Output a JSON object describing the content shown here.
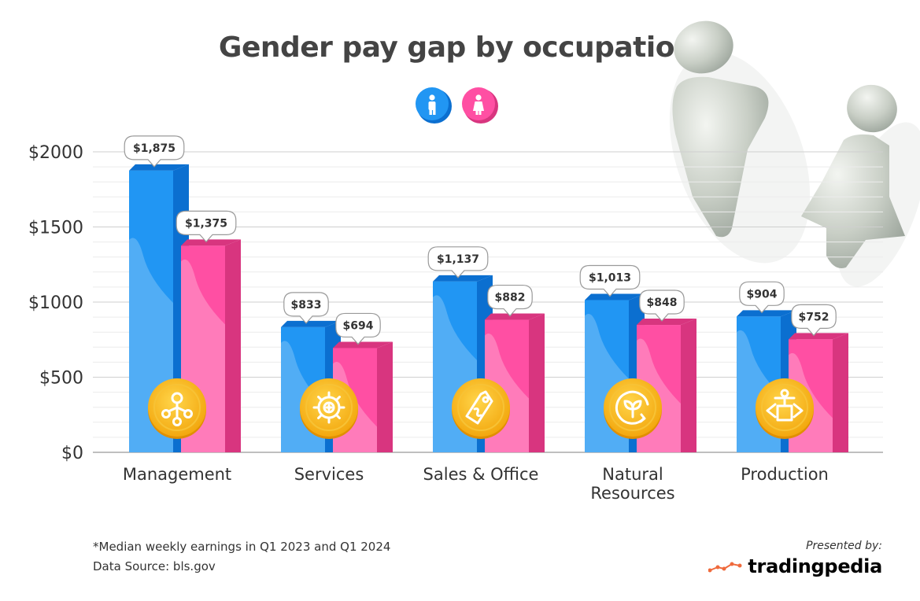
{
  "title": "Gender pay gap by occupation",
  "footnote": "*Median weekly earnings in Q1 2023 and Q1 2024",
  "source": "Data Source: bls.gov",
  "presented_by": "Presented by:",
  "brand": "tradingpedia",
  "colors": {
    "male": "#2196f3",
    "male_dark": "#0b6fd0",
    "female": "#ff4fa3",
    "female_dark": "#d8357f",
    "icon_circle": "#f9b51a"
  },
  "legend": [
    {
      "icon": "male-icon",
      "color": "#2196f3"
    },
    {
      "icon": "female-icon",
      "color": "#ff4fa3"
    }
  ],
  "chart_data": {
    "type": "bar",
    "title": "Gender pay gap by occupation",
    "categories": [
      "Management",
      "Services",
      "Sales & Office",
      "Natural Resources",
      "Production"
    ],
    "category_lines": [
      [
        "Management"
      ],
      [
        "Services"
      ],
      [
        "Sales & Office"
      ],
      [
        "Natural",
        "Resources"
      ],
      [
        "Production"
      ]
    ],
    "category_icons": [
      "network-icon",
      "gear-icon",
      "price-tag-icon",
      "plant-cycle-icon",
      "conveyor-icon"
    ],
    "series": [
      {
        "values": [
          1875,
          833,
          1137,
          1013,
          904
        ],
        "labels": [
          "$1,875",
          "$833",
          "$1,137",
          "$1,013",
          "$904"
        ],
        "color": "#2196f3"
      },
      {
        "values": [
          1375,
          694,
          882,
          848,
          752
        ],
        "labels": [
          "$1,375",
          "$694",
          "$882",
          "$848",
          "$752"
        ],
        "color": "#ff4fa3"
      }
    ],
    "y_ticks": [
      0,
      500,
      1000,
      1500,
      2000
    ],
    "y_tick_labels": [
      "$0",
      "$500",
      "$1000",
      "$1500",
      "$2000"
    ],
    "ylim": [
      0,
      2000
    ],
    "grid": true,
    "legend_position": "top-center"
  }
}
